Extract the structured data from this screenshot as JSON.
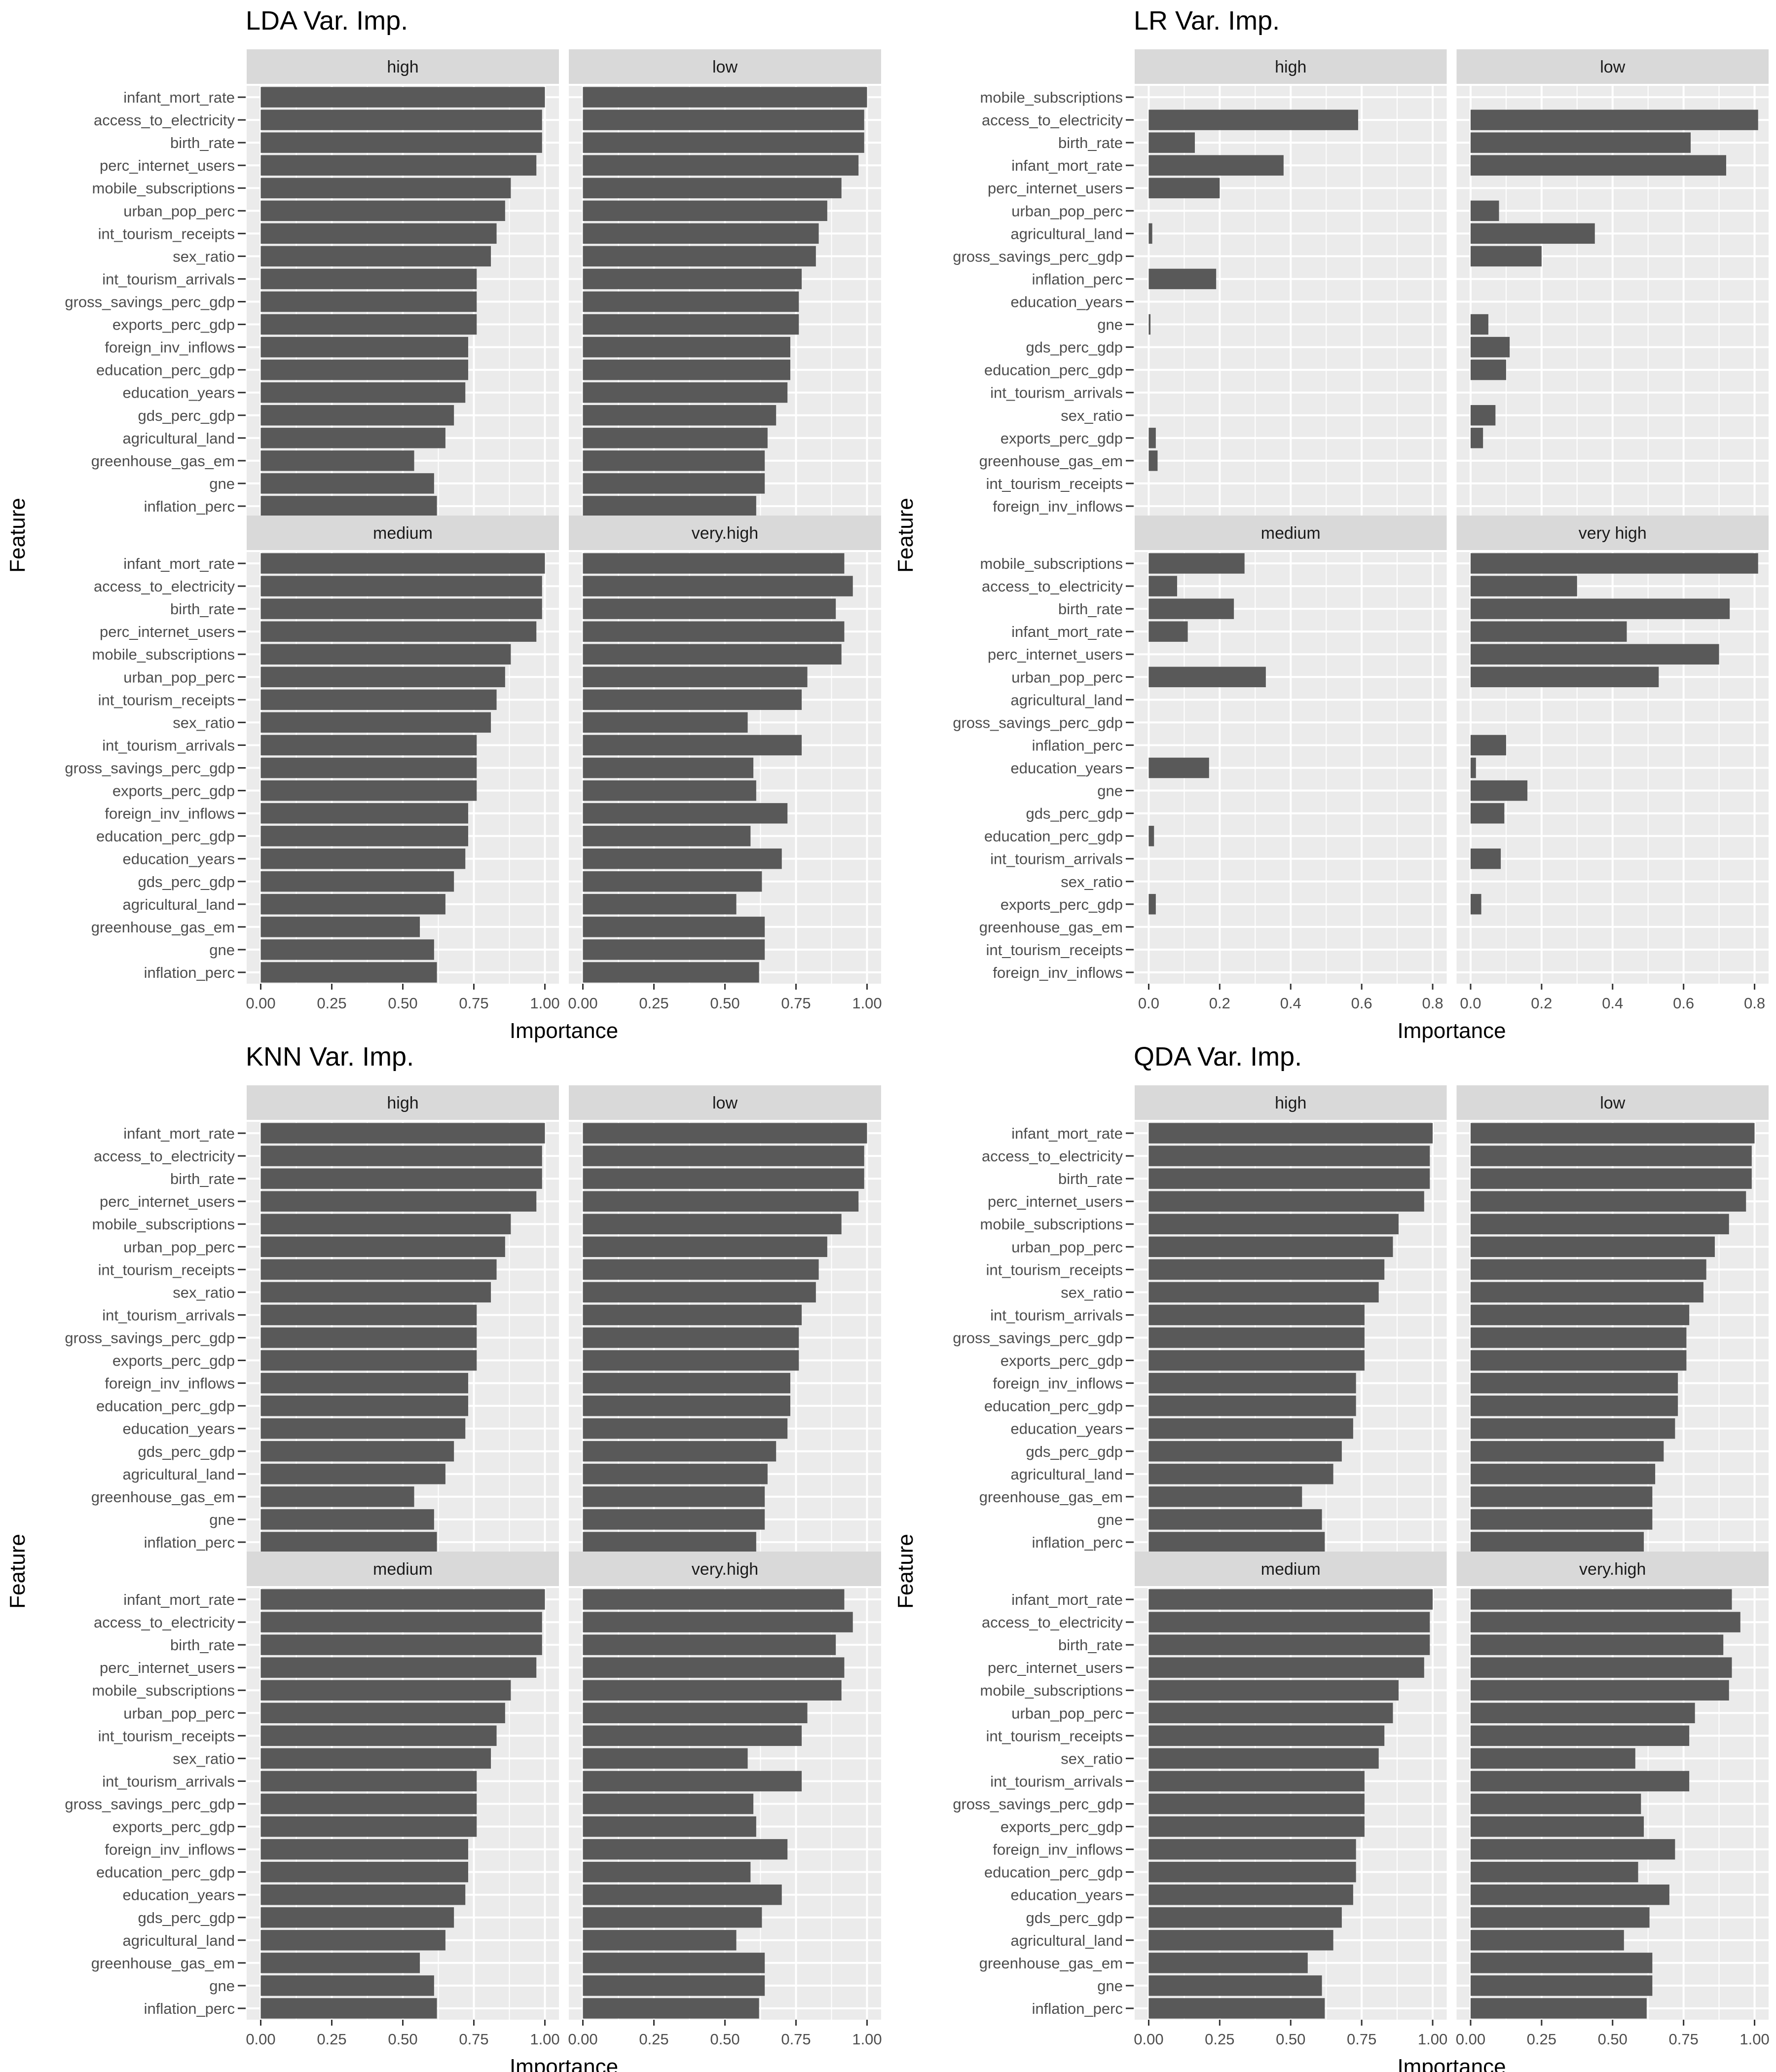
{
  "chart_data": [
    {
      "type": "bar",
      "orientation": "horizontal",
      "title": "LDA Var. Imp.",
      "xlabel": "Importance",
      "ylabel": "Feature",
      "xlim": [
        0,
        1
      ],
      "xticks": [
        "0.00",
        "0.25",
        "0.50",
        "0.75",
        "1.00"
      ],
      "panels": [
        {
          "name": "high",
          "features": [
            "infant_mort_rate",
            "access_to_electricity",
            "birth_rate",
            "perc_internet_users",
            "mobile_subscriptions",
            "urban_pop_perc",
            "int_tourism_receipts",
            "sex_ratio",
            "int_tourism_arrivals",
            "gross_savings_perc_gdp",
            "exports_perc_gdp",
            "foreign_inv_inflows",
            "education_perc_gdp",
            "education_years",
            "gds_perc_gdp",
            "agricultural_land",
            "greenhouse_gas_em",
            "gne",
            "inflation_perc"
          ],
          "values": [
            1.0,
            0.99,
            0.99,
            0.97,
            0.88,
            0.86,
            0.83,
            0.81,
            0.76,
            0.76,
            0.76,
            0.73,
            0.73,
            0.72,
            0.68,
            0.65,
            0.54,
            0.61,
            0.62
          ]
        },
        {
          "name": "low",
          "features": [
            "infant_mort_rate",
            "access_to_electricity",
            "birth_rate",
            "perc_internet_users",
            "mobile_subscriptions",
            "urban_pop_perc",
            "int_tourism_receipts",
            "sex_ratio",
            "int_tourism_arrivals",
            "gross_savings_perc_gdp",
            "exports_perc_gdp",
            "foreign_inv_inflows",
            "education_perc_gdp",
            "education_years",
            "gds_perc_gdp",
            "agricultural_land",
            "greenhouse_gas_em",
            "gne",
            "inflation_perc"
          ],
          "values": [
            1.0,
            0.99,
            0.99,
            0.97,
            0.91,
            0.86,
            0.83,
            0.82,
            0.77,
            0.76,
            0.76,
            0.73,
            0.73,
            0.72,
            0.68,
            0.65,
            0.64,
            0.64,
            0.61
          ]
        },
        {
          "name": "medium",
          "features": [
            "infant_mort_rate",
            "access_to_electricity",
            "birth_rate",
            "perc_internet_users",
            "mobile_subscriptions",
            "urban_pop_perc",
            "int_tourism_receipts",
            "sex_ratio",
            "int_tourism_arrivals",
            "gross_savings_perc_gdp",
            "exports_perc_gdp",
            "foreign_inv_inflows",
            "education_perc_gdp",
            "education_years",
            "gds_perc_gdp",
            "agricultural_land",
            "greenhouse_gas_em",
            "gne",
            "inflation_perc"
          ],
          "values": [
            1.0,
            0.99,
            0.99,
            0.97,
            0.88,
            0.86,
            0.83,
            0.81,
            0.76,
            0.76,
            0.76,
            0.73,
            0.73,
            0.72,
            0.68,
            0.65,
            0.56,
            0.61,
            0.62
          ]
        },
        {
          "name": "very.high",
          "features": [
            "infant_mort_rate",
            "access_to_electricity",
            "birth_rate",
            "perc_internet_users",
            "mobile_subscriptions",
            "urban_pop_perc",
            "int_tourism_receipts",
            "sex_ratio",
            "int_tourism_arrivals",
            "gross_savings_perc_gdp",
            "exports_perc_gdp",
            "foreign_inv_inflows",
            "education_perc_gdp",
            "education_years",
            "gds_perc_gdp",
            "agricultural_land",
            "greenhouse_gas_em",
            "gne",
            "inflation_perc"
          ],
          "values": [
            0.92,
            0.95,
            0.89,
            0.92,
            0.91,
            0.79,
            0.77,
            0.58,
            0.77,
            0.6,
            0.61,
            0.72,
            0.59,
            0.7,
            0.63,
            0.54,
            0.64,
            0.64,
            0.62
          ]
        }
      ]
    },
    {
      "type": "bar",
      "orientation": "horizontal",
      "title": "LR Var. Imp.",
      "xlabel": "Importance",
      "ylabel": "Feature",
      "xlim": [
        0,
        0.8
      ],
      "xticks": [
        "0.0",
        "0.2",
        "0.4",
        "0.6",
        "0.8"
      ],
      "panels": [
        {
          "name": "high",
          "features": [
            "mobile_subscriptions",
            "access_to_electricity",
            "birth_rate",
            "infant_mort_rate",
            "perc_internet_users",
            "urban_pop_perc",
            "agricultural_land",
            "gross_savings_perc_gdp",
            "inflation_perc",
            "education_years",
            "gne",
            "gds_perc_gdp",
            "education_perc_gdp",
            "int_tourism_arrivals",
            "sex_ratio",
            "exports_perc_gdp",
            "greenhouse_gas_em",
            "int_tourism_receipts",
            "foreign_inv_inflows"
          ],
          "values": [
            0,
            0.59,
            0.13,
            0.38,
            0.2,
            0,
            0.01,
            0,
            0.19,
            0,
            0.005,
            0,
            0,
            0,
            0,
            0.02,
            0.025,
            0,
            0
          ]
        },
        {
          "name": "low",
          "features": [
            "mobile_subscriptions",
            "access_to_electricity",
            "birth_rate",
            "infant_mort_rate",
            "perc_internet_users",
            "urban_pop_perc",
            "agricultural_land",
            "gross_savings_perc_gdp",
            "inflation_perc",
            "education_years",
            "gne",
            "gds_perc_gdp",
            "education_perc_gdp",
            "int_tourism_arrivals",
            "sex_ratio",
            "exports_perc_gdp",
            "greenhouse_gas_em",
            "int_tourism_receipts",
            "foreign_inv_inflows"
          ],
          "values": [
            0,
            0.81,
            0.62,
            0.72,
            0,
            0.08,
            0.35,
            0.2,
            0,
            0,
            0.05,
            0.11,
            0.1,
            0,
            0.07,
            0.035,
            0,
            0,
            0
          ]
        },
        {
          "name": "medium",
          "features": [
            "mobile_subscriptions",
            "access_to_electricity",
            "birth_rate",
            "infant_mort_rate",
            "perc_internet_users",
            "urban_pop_perc",
            "agricultural_land",
            "gross_savings_perc_gdp",
            "inflation_perc",
            "education_years",
            "gne",
            "gds_perc_gdp",
            "education_perc_gdp",
            "int_tourism_arrivals",
            "sex_ratio",
            "exports_perc_gdp",
            "greenhouse_gas_em",
            "int_tourism_receipts",
            "foreign_inv_inflows"
          ],
          "values": [
            0.27,
            0.08,
            0.24,
            0.11,
            0,
            0.33,
            0,
            0,
            0,
            0.17,
            0,
            0,
            0.015,
            0,
            0,
            0.02,
            0,
            0,
            0
          ]
        },
        {
          "name": "very high",
          "features": [
            "mobile_subscriptions",
            "access_to_electricity",
            "birth_rate",
            "infant_mort_rate",
            "perc_internet_users",
            "urban_pop_perc",
            "agricultural_land",
            "gross_savings_perc_gdp",
            "inflation_perc",
            "education_years",
            "gne",
            "gds_perc_gdp",
            "education_perc_gdp",
            "int_tourism_arrivals",
            "sex_ratio",
            "exports_perc_gdp",
            "greenhouse_gas_em",
            "int_tourism_receipts",
            "foreign_inv_inflows"
          ],
          "values": [
            0.81,
            0.3,
            0.73,
            0.44,
            0.7,
            0.53,
            0,
            0,
            0.1,
            0.015,
            0.16,
            0.095,
            0,
            0.085,
            0,
            0.03,
            0,
            0,
            0
          ]
        }
      ]
    },
    {
      "type": "bar",
      "orientation": "horizontal",
      "title": "KNN Var. Imp.",
      "xlabel": "Importance",
      "ylabel": "Feature",
      "xlim": [
        0,
        1
      ],
      "xticks": [
        "0.00",
        "0.25",
        "0.50",
        "0.75",
        "1.00"
      ],
      "panels": [
        {
          "name": "high",
          "features": [
            "infant_mort_rate",
            "access_to_electricity",
            "birth_rate",
            "perc_internet_users",
            "mobile_subscriptions",
            "urban_pop_perc",
            "int_tourism_receipts",
            "sex_ratio",
            "int_tourism_arrivals",
            "gross_savings_perc_gdp",
            "exports_perc_gdp",
            "foreign_inv_inflows",
            "education_perc_gdp",
            "education_years",
            "gds_perc_gdp",
            "agricultural_land",
            "greenhouse_gas_em",
            "gne",
            "inflation_perc"
          ],
          "values": [
            1.0,
            0.99,
            0.99,
            0.97,
            0.88,
            0.86,
            0.83,
            0.81,
            0.76,
            0.76,
            0.76,
            0.73,
            0.73,
            0.72,
            0.68,
            0.65,
            0.54,
            0.61,
            0.62
          ]
        },
        {
          "name": "low",
          "features": [
            "infant_mort_rate",
            "access_to_electricity",
            "birth_rate",
            "perc_internet_users",
            "mobile_subscriptions",
            "urban_pop_perc",
            "int_tourism_receipts",
            "sex_ratio",
            "int_tourism_arrivals",
            "gross_savings_perc_gdp",
            "exports_perc_gdp",
            "foreign_inv_inflows",
            "education_perc_gdp",
            "education_years",
            "gds_perc_gdp",
            "agricultural_land",
            "greenhouse_gas_em",
            "gne",
            "inflation_perc"
          ],
          "values": [
            1.0,
            0.99,
            0.99,
            0.97,
            0.91,
            0.86,
            0.83,
            0.82,
            0.77,
            0.76,
            0.76,
            0.73,
            0.73,
            0.72,
            0.68,
            0.65,
            0.64,
            0.64,
            0.61
          ]
        },
        {
          "name": "medium",
          "features": [
            "infant_mort_rate",
            "access_to_electricity",
            "birth_rate",
            "perc_internet_users",
            "mobile_subscriptions",
            "urban_pop_perc",
            "int_tourism_receipts",
            "sex_ratio",
            "int_tourism_arrivals",
            "gross_savings_perc_gdp",
            "exports_perc_gdp",
            "foreign_inv_inflows",
            "education_perc_gdp",
            "education_years",
            "gds_perc_gdp",
            "agricultural_land",
            "greenhouse_gas_em",
            "gne",
            "inflation_perc"
          ],
          "values": [
            1.0,
            0.99,
            0.99,
            0.97,
            0.88,
            0.86,
            0.83,
            0.81,
            0.76,
            0.76,
            0.76,
            0.73,
            0.73,
            0.72,
            0.68,
            0.65,
            0.56,
            0.61,
            0.62
          ]
        },
        {
          "name": "very.high",
          "features": [
            "infant_mort_rate",
            "access_to_electricity",
            "birth_rate",
            "perc_internet_users",
            "mobile_subscriptions",
            "urban_pop_perc",
            "int_tourism_receipts",
            "sex_ratio",
            "int_tourism_arrivals",
            "gross_savings_perc_gdp",
            "exports_perc_gdp",
            "foreign_inv_inflows",
            "education_perc_gdp",
            "education_years",
            "gds_perc_gdp",
            "agricultural_land",
            "greenhouse_gas_em",
            "gne",
            "inflation_perc"
          ],
          "values": [
            0.92,
            0.95,
            0.89,
            0.92,
            0.91,
            0.79,
            0.77,
            0.58,
            0.77,
            0.6,
            0.61,
            0.72,
            0.59,
            0.7,
            0.63,
            0.54,
            0.64,
            0.64,
            0.62
          ]
        }
      ]
    },
    {
      "type": "bar",
      "orientation": "horizontal",
      "title": "QDA Var. Imp.",
      "xlabel": "Importance",
      "ylabel": "Feature",
      "xlim": [
        0,
        1
      ],
      "xticks": [
        "0.00",
        "0.25",
        "0.50",
        "0.75",
        "1.00"
      ],
      "panels": [
        {
          "name": "high",
          "features": [
            "infant_mort_rate",
            "access_to_electricity",
            "birth_rate",
            "perc_internet_users",
            "mobile_subscriptions",
            "urban_pop_perc",
            "int_tourism_receipts",
            "sex_ratio",
            "int_tourism_arrivals",
            "gross_savings_perc_gdp",
            "exports_perc_gdp",
            "foreign_inv_inflows",
            "education_perc_gdp",
            "education_years",
            "gds_perc_gdp",
            "agricultural_land",
            "greenhouse_gas_em",
            "gne",
            "inflation_perc"
          ],
          "values": [
            1.0,
            0.99,
            0.99,
            0.97,
            0.88,
            0.86,
            0.83,
            0.81,
            0.76,
            0.76,
            0.76,
            0.73,
            0.73,
            0.72,
            0.68,
            0.65,
            0.54,
            0.61,
            0.62
          ]
        },
        {
          "name": "low",
          "features": [
            "infant_mort_rate",
            "access_to_electricity",
            "birth_rate",
            "perc_internet_users",
            "mobile_subscriptions",
            "urban_pop_perc",
            "int_tourism_receipts",
            "sex_ratio",
            "int_tourism_arrivals",
            "gross_savings_perc_gdp",
            "exports_perc_gdp",
            "foreign_inv_inflows",
            "education_perc_gdp",
            "education_years",
            "gds_perc_gdp",
            "agricultural_land",
            "greenhouse_gas_em",
            "gne",
            "inflation_perc"
          ],
          "values": [
            1.0,
            0.99,
            0.99,
            0.97,
            0.91,
            0.86,
            0.83,
            0.82,
            0.77,
            0.76,
            0.76,
            0.73,
            0.73,
            0.72,
            0.68,
            0.65,
            0.64,
            0.64,
            0.61
          ]
        },
        {
          "name": "medium",
          "features": [
            "infant_mort_rate",
            "access_to_electricity",
            "birth_rate",
            "perc_internet_users",
            "mobile_subscriptions",
            "urban_pop_perc",
            "int_tourism_receipts",
            "sex_ratio",
            "int_tourism_arrivals",
            "gross_savings_perc_gdp",
            "exports_perc_gdp",
            "foreign_inv_inflows",
            "education_perc_gdp",
            "education_years",
            "gds_perc_gdp",
            "agricultural_land",
            "greenhouse_gas_em",
            "gne",
            "inflation_perc"
          ],
          "values": [
            1.0,
            0.99,
            0.99,
            0.97,
            0.88,
            0.86,
            0.83,
            0.81,
            0.76,
            0.76,
            0.76,
            0.73,
            0.73,
            0.72,
            0.68,
            0.65,
            0.56,
            0.61,
            0.62
          ]
        },
        {
          "name": "very.high",
          "features": [
            "infant_mort_rate",
            "access_to_electricity",
            "birth_rate",
            "perc_internet_users",
            "mobile_subscriptions",
            "urban_pop_perc",
            "int_tourism_receipts",
            "sex_ratio",
            "int_tourism_arrivals",
            "gross_savings_perc_gdp",
            "exports_perc_gdp",
            "foreign_inv_inflows",
            "education_perc_gdp",
            "education_years",
            "gds_perc_gdp",
            "agricultural_land",
            "greenhouse_gas_em",
            "gne",
            "inflation_perc"
          ],
          "values": [
            0.92,
            0.95,
            0.89,
            0.92,
            0.91,
            0.79,
            0.77,
            0.58,
            0.77,
            0.6,
            0.61,
            0.72,
            0.59,
            0.7,
            0.63,
            0.54,
            0.64,
            0.64,
            0.62
          ]
        }
      ]
    }
  ],
  "colors": {
    "bar": "#595959",
    "panel_bg": "#ebebeb",
    "strip_bg": "#d9d9d9",
    "grid_major": "#ffffff",
    "text": "#4d4d4d"
  }
}
